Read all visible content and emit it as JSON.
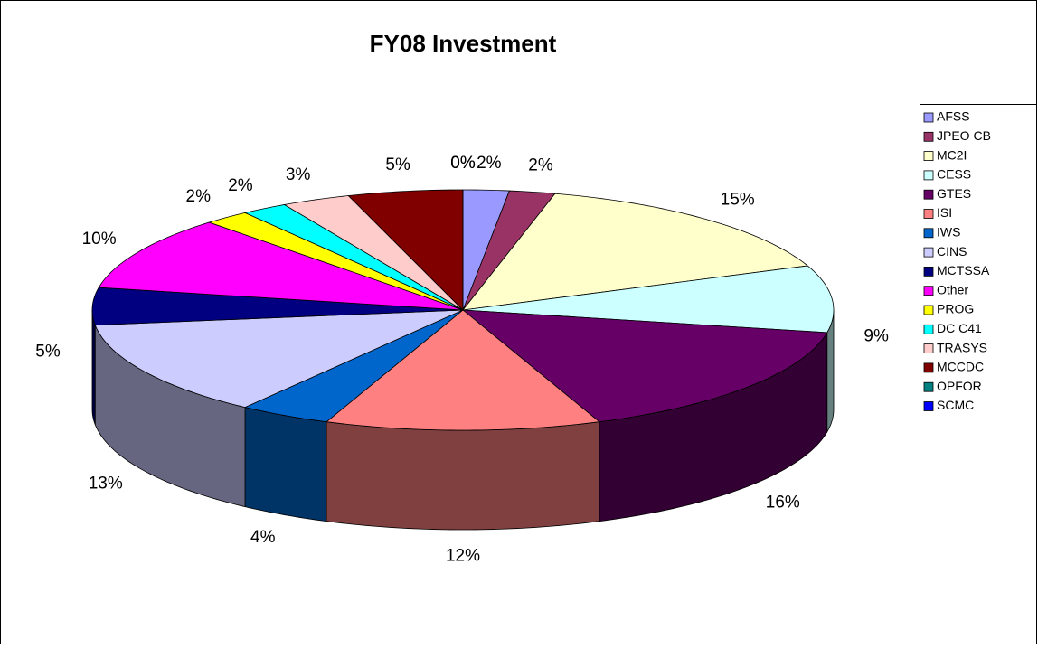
{
  "chart_data": {
    "type": "pie3d",
    "title": "FY08 Investment",
    "categories": [
      "AFSS",
      "JPEO CB",
      "MC2I",
      "CESS",
      "GTES",
      "ISI",
      "IWS",
      "CINS",
      "MCTSSA",
      "Other",
      "PROG",
      "DC C41",
      "TRASYS",
      "MCCDC",
      "OPFOR",
      "SCMC"
    ],
    "values": [
      2,
      2,
      15,
      9,
      16,
      12,
      4,
      13,
      5,
      10,
      2,
      2,
      3,
      5,
      0,
      0
    ],
    "value_labels": [
      "2%",
      "2%",
      "15%",
      "9%",
      "16%",
      "12%",
      "4%",
      "13%",
      "5%",
      "10%",
      "2%",
      "2%",
      "3%",
      "5%",
      "0%",
      "0%"
    ],
    "colors": [
      "#9999ff",
      "#993366",
      "#ffffcc",
      "#ccffff",
      "#660066",
      "#ff8080",
      "#0066cc",
      "#ccccff",
      "#000080",
      "#ff00ff",
      "#ffff00",
      "#00ffff",
      "#ffcccc",
      "#800000",
      "#008080",
      "#0000ff"
    ],
    "legend": "right"
  }
}
